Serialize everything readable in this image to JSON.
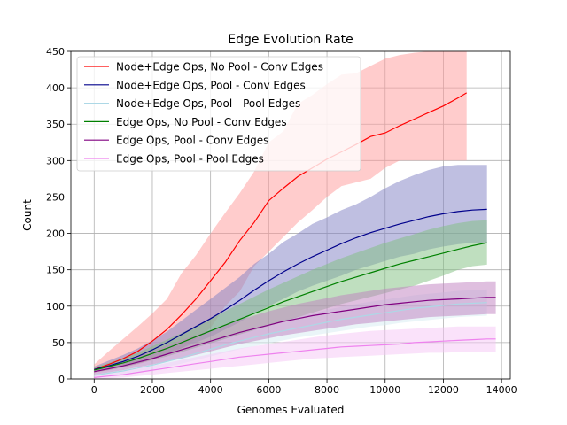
{
  "chart_data": {
    "type": "line",
    "title": "Edge Evolution Rate",
    "xlabel": "Genomes Evaluated",
    "ylabel": "Count",
    "xlim": [
      -800,
      14300
    ],
    "ylim": [
      0,
      450
    ],
    "xticks": [
      0,
      2000,
      4000,
      6000,
      8000,
      10000,
      12000,
      14000
    ],
    "yticks": [
      0,
      50,
      100,
      150,
      200,
      250,
      300,
      350,
      400,
      450
    ],
    "grid": true,
    "legend_position": "top-left",
    "series": [
      {
        "name": "Node+Edge Ops, No Pool - Conv Edges",
        "color": "#ff0000",
        "band_color": "#ff9999",
        "x": [
          0,
          500,
          1000,
          1500,
          2000,
          2500,
          3000,
          3500,
          4000,
          4500,
          5000,
          5500,
          6000,
          6500,
          7000,
          7500,
          8000,
          8500,
          9000,
          9500,
          10000,
          10500,
          11000,
          11500,
          12000,
          12500,
          12800
        ],
        "mean": [
          13,
          20,
          28,
          38,
          52,
          68,
          88,
          110,
          135,
          160,
          190,
          215,
          245,
          262,
          278,
          290,
          302,
          312,
          322,
          333,
          338,
          348,
          357,
          366,
          375,
          386,
          393
        ],
        "upper": [
          20,
          38,
          55,
          72,
          90,
          110,
          145,
          170,
          200,
          228,
          255,
          285,
          325,
          340,
          378,
          390,
          405,
          418,
          420,
          430,
          440,
          445,
          448,
          450,
          450,
          450,
          450
        ],
        "lower": [
          9,
          12,
          16,
          20,
          26,
          34,
          42,
          55,
          70,
          100,
          120,
          155,
          175,
          195,
          215,
          232,
          250,
          265,
          270,
          275,
          290,
          300,
          300,
          300,
          300,
          300,
          300
        ]
      },
      {
        "name": "Node+Edge Ops, Pool - Conv Edges",
        "color": "#00008b",
        "band_color": "#7f7fc4",
        "x": [
          0,
          500,
          1000,
          1500,
          2000,
          2500,
          3000,
          3500,
          4000,
          4500,
          5000,
          5500,
          6000,
          6500,
          7000,
          7500,
          8000,
          8500,
          9000,
          9500,
          10000,
          10500,
          11000,
          11500,
          12000,
          12500,
          13000,
          13500
        ],
        "mean": [
          13,
          18,
          24,
          31,
          40,
          50,
          61,
          72,
          83,
          95,
          108,
          122,
          135,
          147,
          158,
          168,
          177,
          186,
          194,
          201,
          207,
          213,
          218,
          223,
          227,
          230,
          232,
          233
        ],
        "upper": [
          17,
          25,
          33,
          42,
          53,
          65,
          80,
          95,
          110,
          125,
          140,
          158,
          172,
          188,
          200,
          213,
          222,
          232,
          240,
          250,
          262,
          272,
          280,
          287,
          292,
          294,
          294,
          294
        ],
        "lower": [
          10,
          13,
          17,
          21,
          27,
          34,
          42,
          50,
          58,
          68,
          78,
          90,
          100,
          110,
          120,
          128,
          135,
          142,
          150,
          156,
          162,
          168,
          172,
          178,
          182,
          185,
          187,
          187
        ]
      },
      {
        "name": "Node+Edge Ops, Pool - Pool Edges",
        "color": "#add8e6",
        "band_color": "#d6ebf2",
        "x": [
          0,
          500,
          1000,
          1500,
          2000,
          2500,
          3000,
          3500,
          4000,
          4500,
          5000,
          5500,
          6000,
          6500,
          7000,
          7500,
          8000,
          8500,
          9000,
          9500,
          10000,
          10500,
          11000,
          11500,
          12000,
          12500,
          13000,
          13500
        ],
        "mean": [
          5,
          8,
          11,
          15,
          19,
          24,
          29,
          35,
          41,
          47,
          52,
          57,
          62,
          66,
          70,
          74,
          78,
          82,
          85,
          88,
          91,
          94,
          97,
          99,
          101,
          103,
          104,
          105
        ],
        "upper": [
          8,
          12,
          16,
          21,
          26,
          32,
          38,
          45,
          52,
          58,
          64,
          70,
          76,
          81,
          86,
          90,
          95,
          99,
          103,
          106,
          109,
          112,
          115,
          117,
          119,
          121,
          122,
          123
        ],
        "lower": [
          3,
          5,
          7,
          10,
          13,
          17,
          21,
          26,
          31,
          36,
          41,
          45,
          49,
          53,
          57,
          60,
          63,
          66,
          69,
          72,
          74,
          77,
          79,
          81,
          83,
          85,
          86,
          87
        ]
      },
      {
        "name": "Edge Ops, No Pool - Conv Edges",
        "color": "#008000",
        "band_color": "#7fbf7f",
        "x": [
          0,
          500,
          1000,
          1500,
          2000,
          2500,
          3000,
          3500,
          4000,
          4500,
          5000,
          5500,
          6000,
          6500,
          7000,
          7500,
          8000,
          8500,
          9000,
          9500,
          10000,
          10500,
          11000,
          11500,
          12000,
          12500,
          13000,
          13500
        ],
        "mean": [
          12,
          17,
          22,
          28,
          35,
          42,
          50,
          58,
          66,
          74,
          82,
          90,
          98,
          106,
          113,
          120,
          127,
          134,
          140,
          146,
          152,
          158,
          163,
          168,
          173,
          178,
          183,
          187
        ],
        "upper": [
          16,
          22,
          29,
          36,
          45,
          54,
          63,
          73,
          83,
          93,
          103,
          113,
          123,
          132,
          141,
          150,
          158,
          166,
          173,
          180,
          187,
          193,
          199,
          205,
          210,
          214,
          217,
          218
        ],
        "lower": [
          9,
          12,
          16,
          21,
          26,
          31,
          37,
          43,
          49,
          55,
          61,
          67,
          73,
          79,
          85,
          91,
          97,
          103,
          108,
          113,
          118,
          123,
          128,
          135,
          142,
          150,
          155,
          157
        ]
      },
      {
        "name": "Edge Ops, Pool - Conv Edges",
        "color": "#800080",
        "band_color": "#bf7fbf",
        "x": [
          0,
          500,
          1000,
          1500,
          2000,
          2500,
          3000,
          3500,
          4000,
          4500,
          5000,
          5500,
          6000,
          6500,
          7000,
          7500,
          8000,
          8500,
          9000,
          9500,
          10000,
          10500,
          11000,
          11500,
          12000,
          12500,
          13000,
          13500,
          13800
        ],
        "mean": [
          10,
          14,
          18,
          23,
          28,
          34,
          40,
          46,
          52,
          58,
          64,
          69,
          74,
          79,
          83,
          87,
          90,
          93,
          96,
          99,
          102,
          104,
          106,
          108,
          109,
          110,
          111,
          112,
          112
        ],
        "upper": [
          14,
          19,
          25,
          31,
          38,
          46,
          53,
          60,
          67,
          74,
          81,
          87,
          93,
          98,
          103,
          107,
          111,
          115,
          118,
          121,
          124,
          126,
          128,
          130,
          131,
          132,
          133,
          134,
          134
        ],
        "lower": [
          6,
          9,
          12,
          16,
          20,
          24,
          28,
          33,
          38,
          43,
          48,
          52,
          56,
          60,
          63,
          66,
          69,
          72,
          75,
          77,
          79,
          81,
          83,
          85,
          86,
          87,
          88,
          89,
          89
        ]
      },
      {
        "name": "Edge Ops, Pool - Pool Edges",
        "color": "#ee82ee",
        "band_color": "#f6c6f6",
        "x": [
          0,
          500,
          1000,
          1500,
          2000,
          2500,
          3000,
          3500,
          4000,
          4500,
          5000,
          5500,
          6000,
          6500,
          7000,
          7500,
          8000,
          8500,
          9000,
          9500,
          10000,
          10500,
          11000,
          11500,
          12000,
          12500,
          13000,
          13500,
          13800
        ],
        "mean": [
          2,
          4,
          6,
          9,
          12,
          15,
          18,
          21,
          24,
          27,
          30,
          32,
          34,
          36,
          38,
          40,
          42,
          44,
          45,
          46,
          47,
          48,
          50,
          51,
          52,
          53,
          54,
          55,
          55
        ],
        "upper": [
          5,
          7,
          10,
          14,
          18,
          22,
          26,
          30,
          34,
          38,
          42,
          45,
          48,
          51,
          54,
          57,
          60,
          62,
          64,
          66,
          67,
          68,
          69,
          70,
          71,
          72,
          72,
          72,
          72
        ],
        "lower": [
          0,
          1,
          2,
          4,
          6,
          8,
          10,
          12,
          14,
          16,
          18,
          20,
          22,
          24,
          26,
          28,
          29,
          30,
          31,
          32,
          33,
          34,
          35,
          36,
          36,
          37,
          37,
          37,
          37
        ]
      }
    ]
  }
}
